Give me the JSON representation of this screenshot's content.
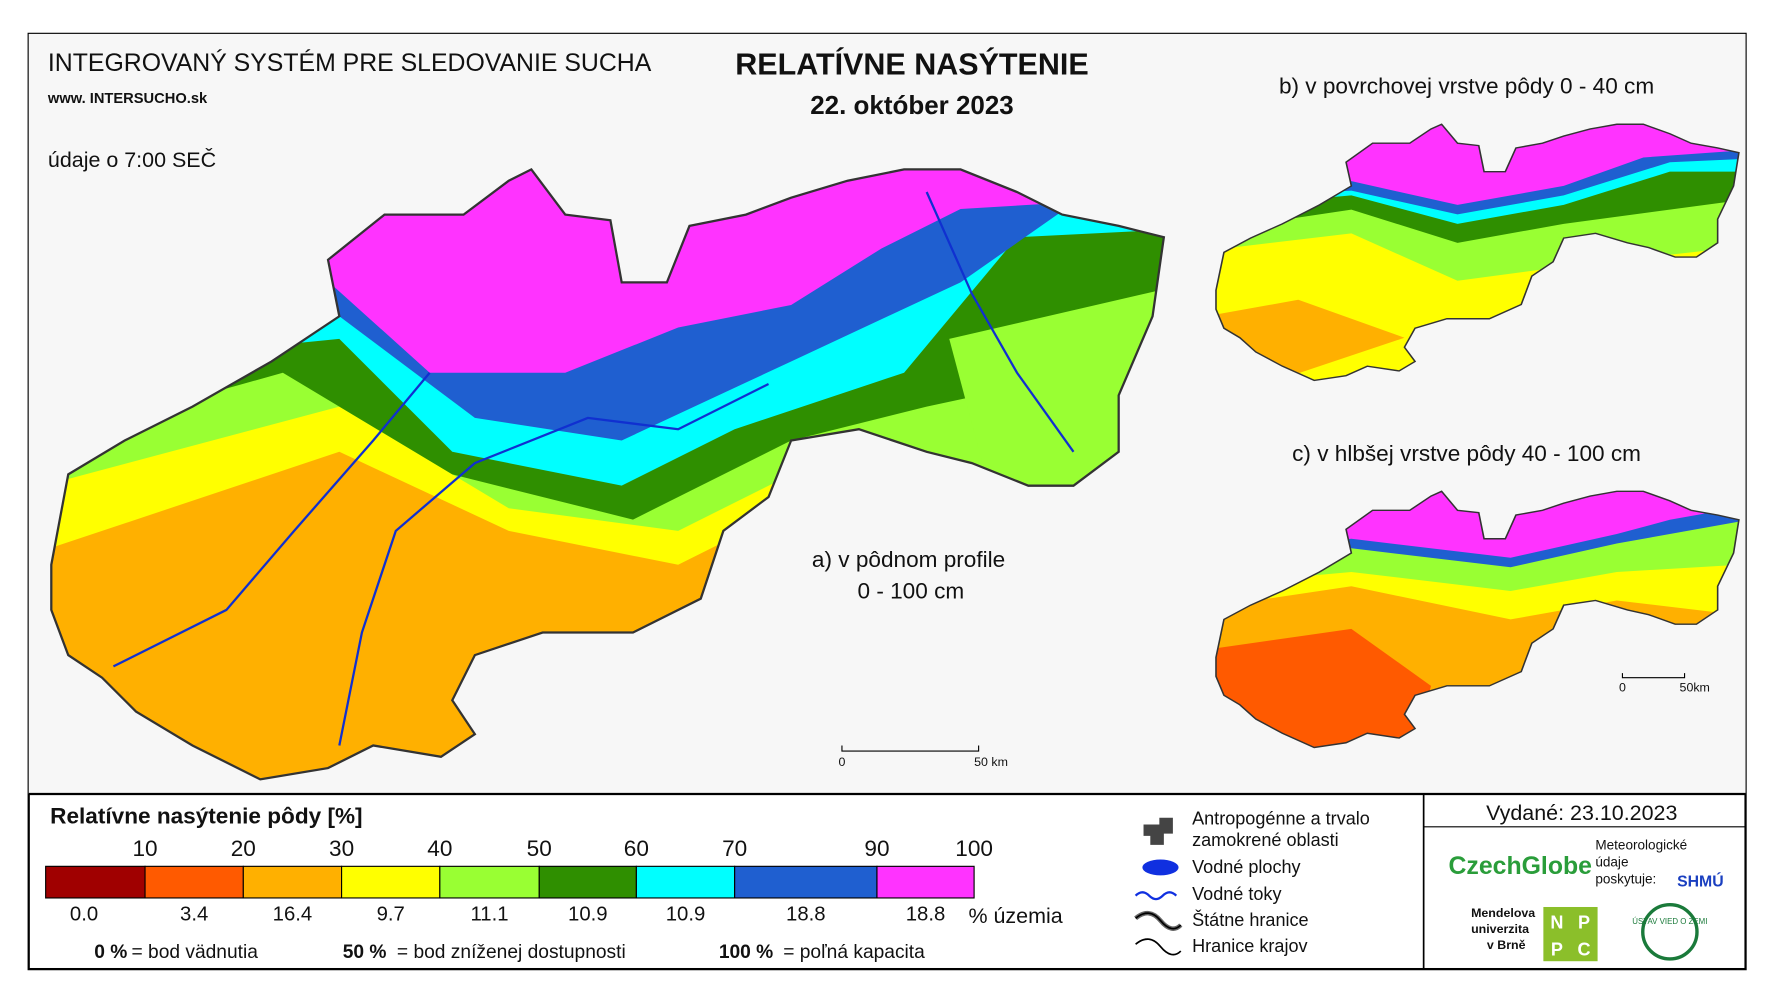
{
  "header": {
    "system": "INTEGROVANÝ SYSTÉM PRE SLEDOVANIE SUCHA",
    "web": "www. INTERSUCHO.sk",
    "time_note": "údaje o 7:00 SEČ",
    "title": "RELATÍVNE NASÝTENIE",
    "date": "22. október 2023"
  },
  "maps": {
    "a": {
      "label_1": "a) v pôdnom profile",
      "label_2": "0 - 100 cm",
      "scale_0": "0",
      "scale_50": "50 km"
    },
    "b": {
      "label": "b) v povrchovej vrstve pôdy 0 - 40 cm"
    },
    "c": {
      "label": "c) v hlbšej vrstve pôdy 40 - 100 cm",
      "scale_0": "0",
      "scale_50": "50km"
    }
  },
  "legend": {
    "title": "Relatívne nasýtenie pôdy [%]",
    "ticks": [
      "10",
      "20",
      "30",
      "40",
      "50",
      "60",
      "70",
      "90",
      "100"
    ],
    "classes": [
      {
        "color": "#a00000",
        "share": "0.0"
      },
      {
        "color": "#ff5a00",
        "share": "3.4"
      },
      {
        "color": "#ffb000",
        "share": "16.4"
      },
      {
        "color": "#ffff00",
        "share": "9.7"
      },
      {
        "color": "#99ff33",
        "share": "11.1"
      },
      {
        "color": "#2f8f00",
        "share": "10.9"
      },
      {
        "color": "#00ffff",
        "share": "10.9"
      },
      {
        "color": "#1f5fd0",
        "share": "18.8"
      },
      {
        "color": "#ff33ff",
        "share": "18.8"
      }
    ],
    "unit": "% územia",
    "notes": [
      {
        "key": "0 %",
        "text": "= bod vädnutia"
      },
      {
        "key": "50 %",
        "text": "= bod zníženej dostupnosti"
      },
      {
        "key": "100 %",
        "text": "= poľná kapacita"
      }
    ]
  },
  "symbols": [
    "Antropogénne a trvalo",
    "zamokrené oblasti",
    "Vodné plochy",
    "Vodné toky",
    "Štátne hranice",
    "Hranice krajov"
  ],
  "footer": {
    "issued": "Vydané: 23.10.2023",
    "czechglobe": "CzechGlobe",
    "meteo_1": "Meteorologické",
    "meteo_2": "údaje",
    "meteo_3": "poskytuje:",
    "shmu": "SHMÚ",
    "mendel_1": "Mendelova",
    "mendel_2": "univerzita",
    "mendel_3": "v Brně",
    "nppc_1": "N",
    "nppc_2": "P",
    "nppc_3": "P",
    "nppc_4": "C",
    "uvz": "ÚSTAV VIED O ZEMI"
  }
}
